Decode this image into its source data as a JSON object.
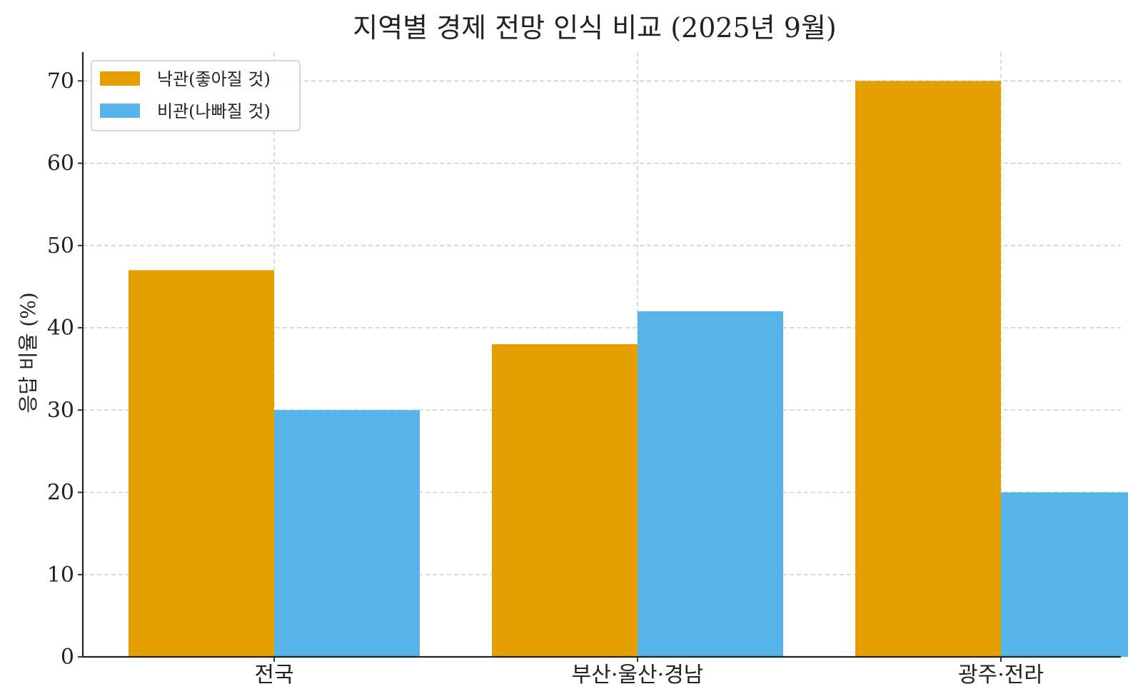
{
  "chart_data": {
    "type": "bar",
    "title": "지역별 경제 전망 인식 비교 (2025년 9월)",
    "xlabel": "",
    "ylabel": "응답 비율 (%)",
    "categories": [
      "전국",
      "부산·울산·경남",
      "광주·전라"
    ],
    "series": [
      {
        "name": "낙관(좋아질 것)",
        "values": [
          47,
          38,
          70
        ],
        "color": "#E69F00"
      },
      {
        "name": "비관(나빠질 것)",
        "values": [
          30,
          42,
          20
        ],
        "color": "#56B4E9"
      }
    ],
    "ylim": [
      0,
      73.5
    ],
    "yticks": [
      "0",
      "10",
      "20",
      "30",
      "40",
      "50",
      "60",
      "70"
    ],
    "grid": true,
    "legend_position": "top-left"
  }
}
